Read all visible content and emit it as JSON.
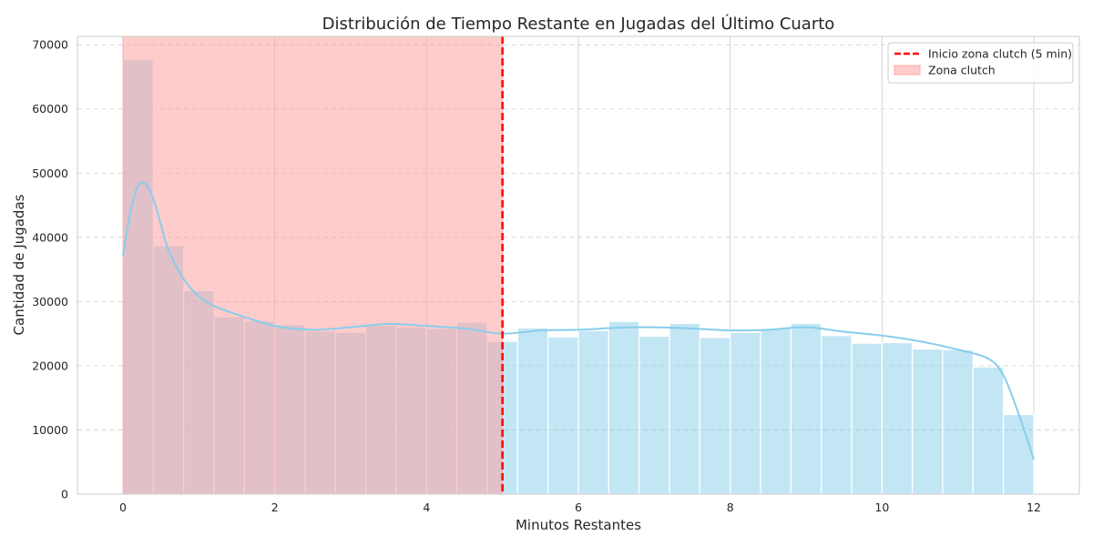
{
  "chart_data": {
    "type": "bar",
    "title": "Distribución de Tiempo Restante en Jugadas del Último Cuarto",
    "xlabel": "Minutos Restantes",
    "ylabel": "Cantidad de Jugadas",
    "xlim": [
      -0.6,
      12.6
    ],
    "ylim": [
      0,
      71300
    ],
    "xticks": [
      0,
      2,
      4,
      6,
      8,
      10,
      12
    ],
    "xtick_labels": [
      "0",
      "2",
      "4",
      "6",
      "8",
      "10",
      "12"
    ],
    "yticks": [
      0,
      10000,
      20000,
      30000,
      40000,
      50000,
      60000,
      70000
    ],
    "ytick_labels": [
      "0",
      "10000",
      "20000",
      "30000",
      "40000",
      "50000",
      "60000",
      "70000"
    ],
    "bin_width": 0.4,
    "bin_starts": [
      0,
      0.4,
      0.8,
      1.2,
      1.6,
      2.0,
      2.4,
      2.8,
      3.2,
      3.6,
      4.0,
      4.4,
      4.8,
      5.2,
      5.6,
      6.0,
      6.4,
      6.8,
      7.2,
      7.6,
      8.0,
      8.4,
      8.8,
      9.2,
      9.6,
      10.0,
      10.4,
      10.8,
      11.2,
      11.6
    ],
    "values": [
      67700,
      38700,
      31700,
      27600,
      27000,
      26400,
      25400,
      25200,
      26300,
      26000,
      25800,
      26800,
      23800,
      25900,
      24500,
      25500,
      26900,
      24600,
      26600,
      24400,
      25200,
      25800,
      26600,
      24700,
      23500,
      23600,
      22600,
      22500,
      19800,
      12400
    ],
    "kde": {
      "x": [
        0,
        0.1,
        0.2,
        0.3,
        0.4,
        0.5,
        0.6,
        0.8,
        1.0,
        1.2,
        1.5,
        2.0,
        2.5,
        3.0,
        3.5,
        4.0,
        4.5,
        5.0,
        5.5,
        6.0,
        6.5,
        7.0,
        7.5,
        8.0,
        8.5,
        9.0,
        9.5,
        10.0,
        10.5,
        11.0,
        11.4,
        11.6,
        11.8,
        12.0
      ],
      "y": [
        37200,
        44000,
        48000,
        48300,
        46000,
        42000,
        38000,
        33500,
        30800,
        29300,
        28000,
        26200,
        25600,
        26000,
        26500,
        26200,
        25800,
        25000,
        25500,
        25600,
        25900,
        26000,
        25800,
        25500,
        25600,
        26000,
        25300,
        24700,
        23800,
        22500,
        21100,
        18500,
        12500,
        5400
      ]
    },
    "clutch_line_x": 5,
    "clutch_zone": [
      0,
      5
    ],
    "legend": [
      {
        "label": "Inicio zona clutch (5 min)",
        "style": "dashed-line"
      },
      {
        "label": "Zona clutch",
        "style": "patch"
      }
    ],
    "legend_position": "top-right",
    "grid": true,
    "colors": {
      "bar": "#87ceeb",
      "bar_edge": "#ffffff",
      "kde": "#87ceeb",
      "zone": "#ff9999",
      "line": "#ff0000",
      "grid": "#cccccc",
      "spine": "#cccccc"
    }
  }
}
